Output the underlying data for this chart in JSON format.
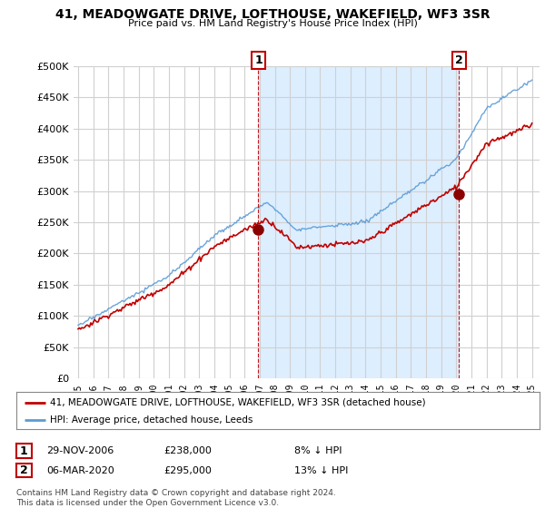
{
  "title": "41, MEADOWGATE DRIVE, LOFTHOUSE, WAKEFIELD, WF3 3SR",
  "subtitle": "Price paid vs. HM Land Registry's House Price Index (HPI)",
  "legend_line1": "41, MEADOWGATE DRIVE, LOFTHOUSE, WAKEFIELD, WF3 3SR (detached house)",
  "legend_line2": "HPI: Average price, detached house, Leeds",
  "annotation1_label": "1",
  "annotation1_date": "29-NOV-2006",
  "annotation1_price": "£238,000",
  "annotation1_hpi": "8% ↓ HPI",
  "annotation2_label": "2",
  "annotation2_date": "06-MAR-2020",
  "annotation2_price": "£295,000",
  "annotation2_hpi": "13% ↓ HPI",
  "footnote": "Contains HM Land Registry data © Crown copyright and database right 2024.\nThis data is licensed under the Open Government Licence v3.0.",
  "hpi_color": "#5b9bd5",
  "price_color": "#c00000",
  "marker_color": "#8b0000",
  "annotation_box_color": "#c00000",
  "background_color": "#ffffff",
  "grid_color": "#d0d0d0",
  "fill_color": "#ddeeff",
  "ylim": [
    0,
    500000
  ],
  "yticks": [
    0,
    50000,
    100000,
    150000,
    200000,
    250000,
    300000,
    350000,
    400000,
    450000,
    500000
  ],
  "sale1_x": 2006.917,
  "sale1_y": 238000,
  "sale2_x": 2020.167,
  "sale2_y": 295000,
  "xlim_left": 1994.7,
  "xlim_right": 2025.5
}
